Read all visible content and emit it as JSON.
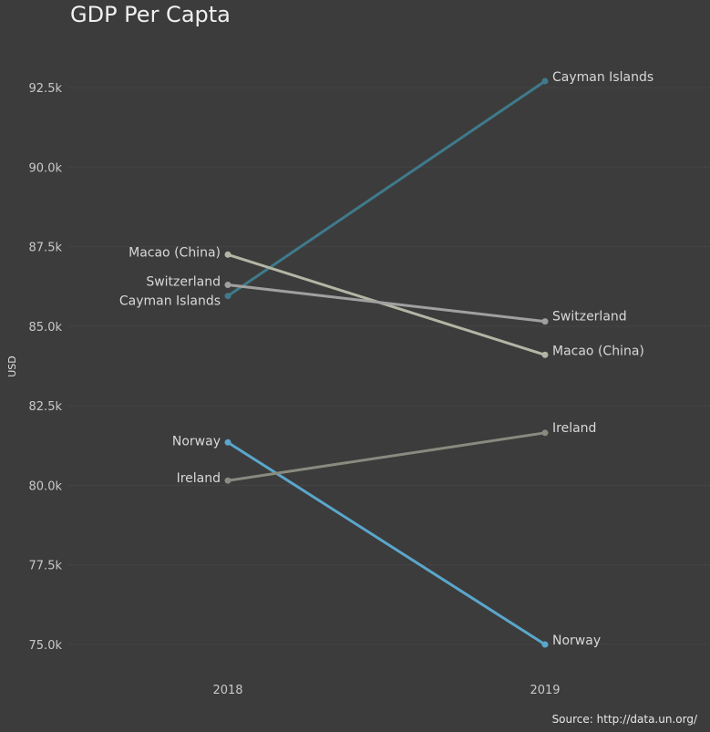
{
  "chart_data": {
    "type": "line",
    "title": "GDP Per Capta",
    "xlabel": "",
    "ylabel": "USD",
    "categories": [
      "2018",
      "2019"
    ],
    "ylim": [
      74000,
      94000
    ],
    "yticks": [
      75000,
      77500,
      80000,
      82500,
      85000,
      87500,
      90000,
      92500
    ],
    "ytick_labels": [
      "75.0k",
      "77.5k",
      "80.0k",
      "82.5k",
      "85.0k",
      "87.5k",
      "90.0k",
      "92.5k"
    ],
    "grid": true,
    "legend": "none (direct labels at line ends)",
    "source": "Source: http://data.un.org/",
    "series": [
      {
        "name": "Cayman Islands",
        "values": [
          85950,
          92700
        ],
        "color": "#3f7a8c",
        "label_color": "#d8d8d8"
      },
      {
        "name": "Macao (China)",
        "values": [
          87250,
          84100
        ],
        "color": "#b5b5a5",
        "label_color": "#d8d8d8"
      },
      {
        "name": "Switzerland",
        "values": [
          86300,
          85150
        ],
        "color": "#a0a0a0",
        "label_color": "#d8d8d8"
      },
      {
        "name": "Norway",
        "values": [
          81350,
          75000
        ],
        "color": "#5aa7cc",
        "label_color": "#d8d8d8"
      },
      {
        "name": "Ireland",
        "values": [
          80150,
          81650
        ],
        "color": "#8a8a80",
        "label_color": "#d8d8d8"
      }
    ]
  }
}
